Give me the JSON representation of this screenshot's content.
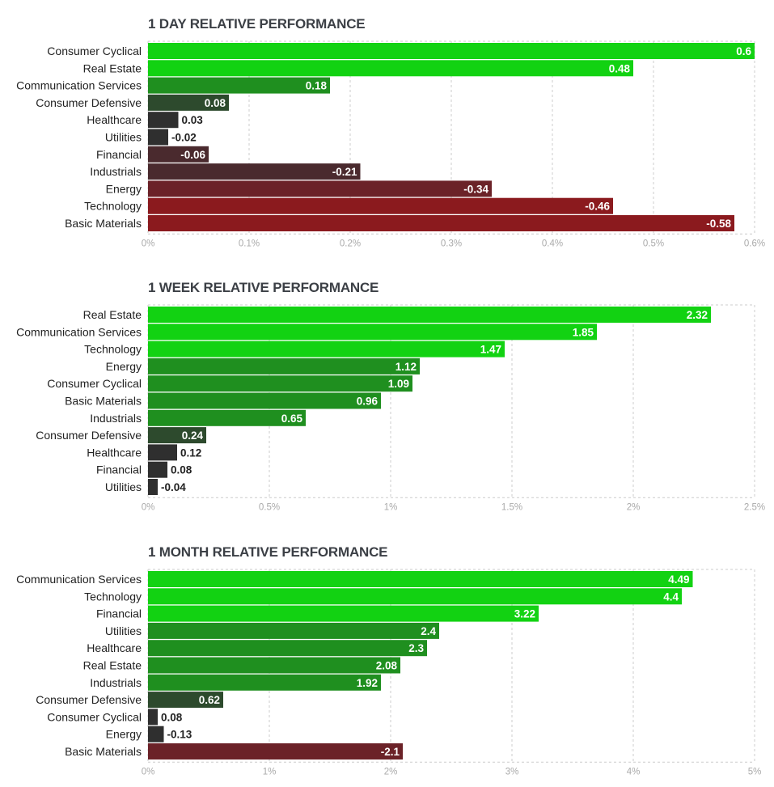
{
  "colors": {
    "pos_strong": "#12d212",
    "pos_mid": "#1f8f1f",
    "pos_weak": "#2d4a2d",
    "neutral": "#2f2f2f",
    "neg_weak": "#4a2a2e",
    "neg_mid": "#6b2228",
    "neg_strong": "#8b1a1e",
    "grid": "#cccccc",
    "tick_text": "#aaaaaa"
  },
  "chart_data": [
    {
      "type": "bar",
      "orientation": "horizontal",
      "title": "1 DAY RELATIVE PERFORMANCE",
      "categories": [
        "Consumer Cyclical",
        "Real Estate",
        "Communication Services",
        "Consumer Defensive",
        "Healthcare",
        "Utilities",
        "Financial",
        "Industrials",
        "Energy",
        "Technology",
        "Basic Materials"
      ],
      "values": [
        0.6,
        0.48,
        0.18,
        0.08,
        0.03,
        -0.02,
        -0.06,
        -0.21,
        -0.34,
        -0.46,
        -0.58
      ],
      "value_labels": [
        "0.6",
        "0.48",
        "0.18",
        "0.08",
        "0.03",
        "-0.02",
        "-0.06",
        "-0.21",
        "-0.34",
        "-0.46",
        "-0.58"
      ],
      "xlim": [
        0,
        0.6
      ],
      "ticks": [
        0,
        0.1,
        0.2,
        0.3,
        0.4,
        0.5,
        0.6
      ],
      "tick_labels": [
        "0%",
        "0.1%",
        "0.2%",
        "0.3%",
        "0.4%",
        "0.5%",
        "0.6%"
      ],
      "bar_length": "absolute value",
      "grid": true
    },
    {
      "type": "bar",
      "orientation": "horizontal",
      "title": "1 WEEK RELATIVE PERFORMANCE",
      "categories": [
        "Real Estate",
        "Communication Services",
        "Technology",
        "Energy",
        "Consumer Cyclical",
        "Basic Materials",
        "Industrials",
        "Consumer Defensive",
        "Healthcare",
        "Financial",
        "Utilities"
      ],
      "values": [
        2.32,
        1.85,
        1.47,
        1.12,
        1.09,
        0.96,
        0.65,
        0.24,
        0.12,
        0.08,
        -0.04
      ],
      "value_labels": [
        "2.32",
        "1.85",
        "1.47",
        "1.12",
        "1.09",
        "0.96",
        "0.65",
        "0.24",
        "0.12",
        "0.08",
        "-0.04"
      ],
      "xlim": [
        0,
        2.5
      ],
      "ticks": [
        0,
        0.5,
        1,
        1.5,
        2,
        2.5
      ],
      "tick_labels": [
        "0%",
        "0.5%",
        "1%",
        "1.5%",
        "2%",
        "2.5%"
      ],
      "bar_length": "absolute value",
      "grid": true
    },
    {
      "type": "bar",
      "orientation": "horizontal",
      "title": "1 MONTH RELATIVE PERFORMANCE",
      "categories": [
        "Communication Services",
        "Technology",
        "Financial",
        "Utilities",
        "Healthcare",
        "Real Estate",
        "Industrials",
        "Consumer Defensive",
        "Consumer Cyclical",
        "Energy",
        "Basic Materials"
      ],
      "values": [
        4.49,
        4.4,
        3.22,
        2.4,
        2.3,
        2.08,
        1.92,
        0.62,
        0.08,
        -0.13,
        -2.1
      ],
      "value_labels": [
        "4.49",
        "4.4",
        "3.22",
        "2.4",
        "2.3",
        "2.08",
        "1.92",
        "0.62",
        "0.08",
        "-0.13",
        "-2.1"
      ],
      "xlim": [
        0,
        5
      ],
      "ticks": [
        0,
        1,
        2,
        3,
        4,
        5
      ],
      "tick_labels": [
        "0%",
        "1%",
        "2%",
        "3%",
        "4%",
        "5%"
      ],
      "bar_length": "absolute value",
      "grid": true
    }
  ]
}
